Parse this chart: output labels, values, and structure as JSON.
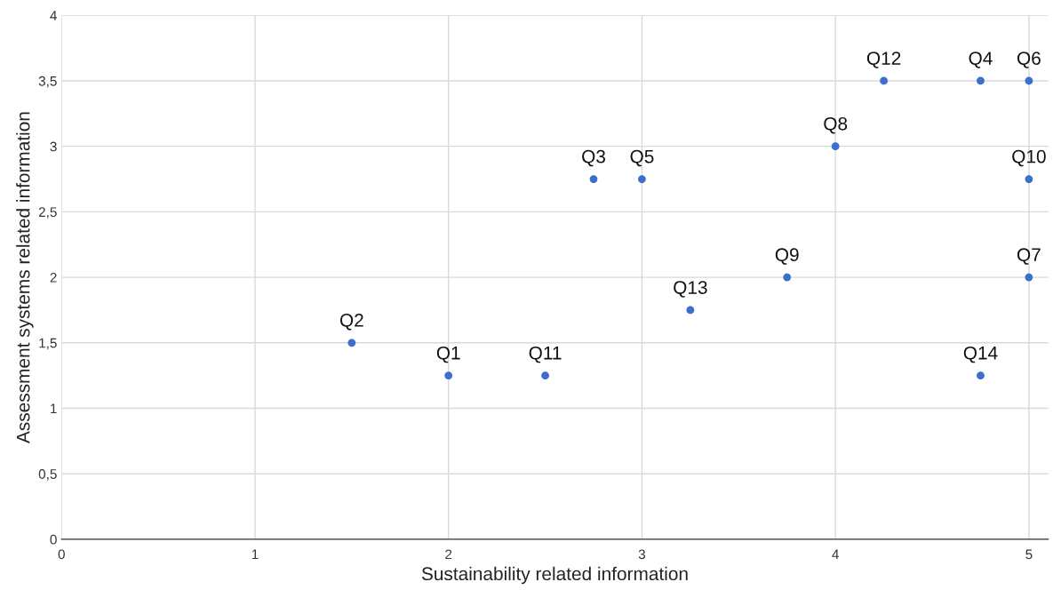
{
  "chart_data": {
    "type": "scatter",
    "xlabel": "Sustainability related information",
    "ylabel": "Assessment systems related information",
    "x": [
      2,
      1.5,
      2.75,
      4.75,
      3,
      5,
      5,
      4,
      3.75,
      5,
      2.5,
      4.25,
      3.25,
      4.75
    ],
    "values": [
      1.25,
      1.5,
      2.75,
      3.5,
      2.75,
      3.5,
      2,
      3,
      2,
      2.75,
      1.25,
      3.5,
      1.75,
      1.25
    ],
    "color": "#3c6fcb",
    "marker": "circle",
    "grid": true,
    "legend": false,
    "xlim": [
      0,
      5.1
    ],
    "xticks": [
      0,
      1,
      2,
      3,
      4,
      5
    ],
    "ylim": [
      0,
      4
    ],
    "yticks": [
      0,
      {
        "value": 0.5,
        "label": "0,5"
      },
      1,
      {
        "value": 1.5,
        "label": "1,5"
      },
      2,
      {
        "value": 2.5,
        "label": "2,5"
      },
      3,
      {
        "value": 3.5,
        "label": "3,5"
      },
      4
    ],
    "annotations": [
      {
        "text": "Q1",
        "x": 2,
        "y": 1.25
      },
      {
        "text": "Q2",
        "x": 1.5,
        "y": 1.5
      },
      {
        "text": "Q3",
        "x": 2.75,
        "y": 2.75
      },
      {
        "text": "Q4",
        "x": 4.75,
        "y": 3.5
      },
      {
        "text": "Q5",
        "x": 3,
        "y": 2.75
      },
      {
        "text": "Q6",
        "x": 5,
        "y": 3.5
      },
      {
        "text": "Q7",
        "x": 5,
        "y": 2
      },
      {
        "text": "Q8",
        "x": 4,
        "y": 3
      },
      {
        "text": "Q9",
        "x": 3.75,
        "y": 2
      },
      {
        "text": "Q10",
        "x": 5,
        "y": 2.75
      },
      {
        "text": "Q11",
        "x": 2.5,
        "y": 1.25
      },
      {
        "text": "Q12",
        "x": 4.25,
        "y": 3.5
      },
      {
        "text": "Q13",
        "x": 3.25,
        "y": 1.75
      },
      {
        "text": "Q14",
        "x": 4.75,
        "y": 1.25
      }
    ]
  }
}
